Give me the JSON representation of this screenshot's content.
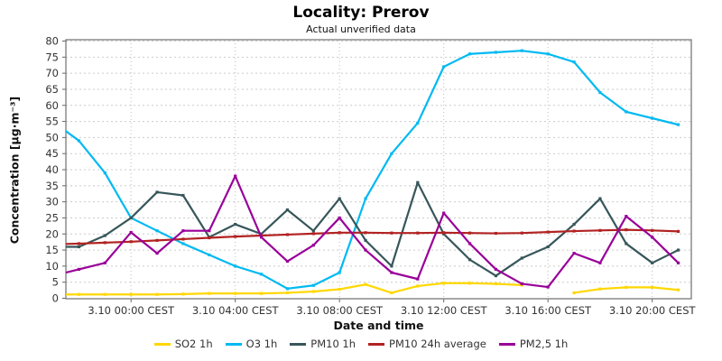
{
  "title": "Locality: Prerov",
  "subtitle": "Actual unverified data",
  "axes": {
    "y_title": "Concentration [µg·m⁻³]",
    "x_title": "Date and time",
    "y_min": 0,
    "y_max": 80,
    "y_tick_step": 5,
    "x_tick_labels": [
      "3.10 00:00 CEST",
      "3.10 04:00 CEST",
      "3.10 08:00 CEST",
      "3.10 12:00 CEST",
      "3.10 16:00 CEST",
      "3.10 20:00 CEST"
    ],
    "x_tick_point_indices": [
      3,
      7,
      11,
      15,
      19,
      23
    ]
  },
  "chart_data": {
    "type": "line",
    "title": "Locality: Prerov",
    "subtitle": "Actual unverified data",
    "xlabel": "Date and time",
    "ylabel": "Concentration [µg·m⁻³]",
    "ylim": [
      0,
      80
    ],
    "grid": true,
    "legend_position": "bottom",
    "x": [
      "2.10 21:00",
      "2.10 22:00",
      "2.10 23:00",
      "3.10 00:00",
      "3.10 01:00",
      "3.10 02:00",
      "3.10 03:00",
      "3.10 04:00",
      "3.10 05:00",
      "3.10 06:00",
      "3.10 07:00",
      "3.10 08:00",
      "3.10 09:00",
      "3.10 10:00",
      "3.10 11:00",
      "3.10 12:00",
      "3.10 13:00",
      "3.10 14:00",
      "3.10 15:00",
      "3.10 16:00",
      "3.10 17:00",
      "3.10 18:00",
      "3.10 19:00",
      "3.10 20:00",
      "3.10 21:00"
    ],
    "x_axis_window_note": "axis spans 24 h starting 21:30, first point clipped at left edge",
    "series": [
      {
        "name": "SO2 1h",
        "color": "#FFD700",
        "values": [
          1.2,
          1.2,
          1.2,
          1.2,
          1.2,
          1.3,
          1.5,
          1.5,
          1.5,
          1.7,
          2.1,
          2.8,
          4.3,
          1.7,
          3.8,
          4.7,
          4.7,
          4.5,
          4.1,
          null,
          1.7,
          2.9,
          3.4,
          3.4,
          2.6
        ]
      },
      {
        "name": "O3 1h",
        "color": "#00B9F2",
        "values": [
          55,
          49,
          39,
          25,
          21,
          17,
          13.5,
          10,
          7.5,
          3,
          4,
          8,
          31,
          45,
          54.5,
          72,
          76,
          76.5,
          77,
          76,
          73.5,
          64,
          58,
          56,
          54
        ]
      },
      {
        "name": "PM10 1h",
        "color": "#37565A",
        "values": [
          16,
          16,
          19.5,
          25,
          33,
          32,
          19,
          23,
          20,
          27.5,
          21,
          31,
          18,
          10,
          36,
          20,
          12,
          7,
          12.5,
          16,
          23,
          31,
          17,
          11,
          15
        ]
      },
      {
        "name": "PM10 24h average",
        "color": "#B22222",
        "values": [
          16.8,
          17.0,
          17.3,
          17.6,
          18.0,
          18.4,
          18.8,
          19.2,
          19.5,
          19.8,
          20.1,
          20.4,
          20.4,
          20.3,
          20.3,
          20.4,
          20.3,
          20.2,
          20.3,
          20.6,
          20.9,
          21.1,
          21.3,
          21.1,
          20.8
        ]
      },
      {
        "name": "PM2,5 1h",
        "color": "#990099",
        "values": [
          7,
          9,
          11,
          20.5,
          14,
          21,
          21,
          38,
          19,
          11.5,
          16.5,
          25,
          15,
          8,
          6,
          26.5,
          17,
          9,
          4.5,
          3.5,
          14,
          11,
          25.5,
          19,
          11
        ]
      }
    ]
  },
  "colors": {
    "grid": "#CBCBCB",
    "plot_border": "#7a7a7a",
    "tick": "#666666",
    "tick_label": "#333333",
    "title": "#000000"
  }
}
